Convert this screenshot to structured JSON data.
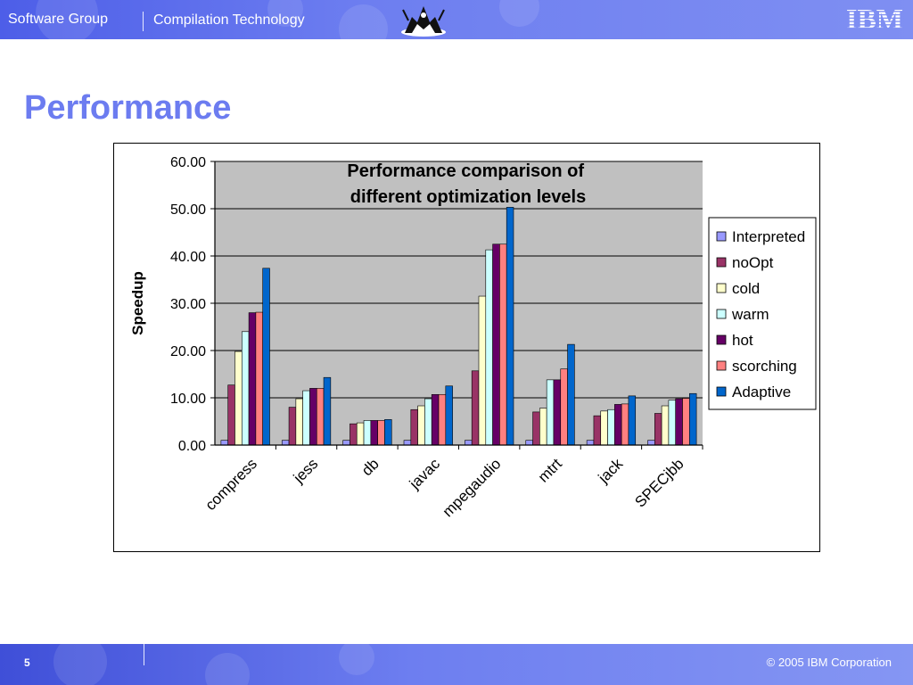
{
  "header": {
    "group_name": "Software Group",
    "product_name": "Compilation Technology",
    "logo_text": "IBM",
    "emblem_icon": "robot-mascot-icon"
  },
  "page": {
    "title": "Performance"
  },
  "footer": {
    "page_number": "5",
    "copyright": "© 2005 IBM Corporation"
  },
  "chart_data": {
    "type": "bar",
    "title": "Performance comparison of different optimization levels",
    "title_lines": [
      "Performance comparison of",
      "different optimization levels"
    ],
    "xlabel": "",
    "ylabel": "Speedup",
    "ylim": [
      0,
      60
    ],
    "yticks": [
      "0.00",
      "10.00",
      "20.00",
      "30.00",
      "40.00",
      "50.00",
      "60.00"
    ],
    "grid": true,
    "plot_background": "#c0c0c0",
    "legend_position": "right",
    "categories": [
      "compress",
      "jess",
      "db",
      "javac",
      "mpegaudio",
      "mtrt",
      "jack",
      "SPECjbb"
    ],
    "series": [
      {
        "name": "Interpreted",
        "color": "#9999ff",
        "values": [
          1.0,
          1.0,
          1.0,
          1.0,
          1.0,
          1.0,
          1.0,
          1.0
        ]
      },
      {
        "name": "noOpt",
        "color": "#993366",
        "values": [
          12.7,
          8.0,
          4.5,
          7.5,
          15.7,
          7.0,
          6.2,
          6.7
        ]
      },
      {
        "name": "cold",
        "color": "#ffffcc",
        "values": [
          19.8,
          9.8,
          4.7,
          8.3,
          31.5,
          7.8,
          7.2,
          8.3
        ]
      },
      {
        "name": "warm",
        "color": "#ccffff",
        "values": [
          24.0,
          11.5,
          5.2,
          9.8,
          41.3,
          13.8,
          7.5,
          9.5
        ]
      },
      {
        "name": "hot",
        "color": "#660066",
        "values": [
          28.0,
          12.0,
          5.2,
          10.7,
          42.5,
          13.8,
          8.6,
          9.8
        ]
      },
      {
        "name": "scorching",
        "color": "#ff8080",
        "values": [
          28.1,
          12.0,
          5.2,
          10.7,
          42.5,
          16.1,
          8.7,
          9.9
        ]
      },
      {
        "name": "Adaptive",
        "color": "#0066cc",
        "values": [
          37.4,
          14.3,
          5.4,
          12.5,
          50.3,
          21.3,
          10.4,
          10.9
        ]
      }
    ]
  }
}
